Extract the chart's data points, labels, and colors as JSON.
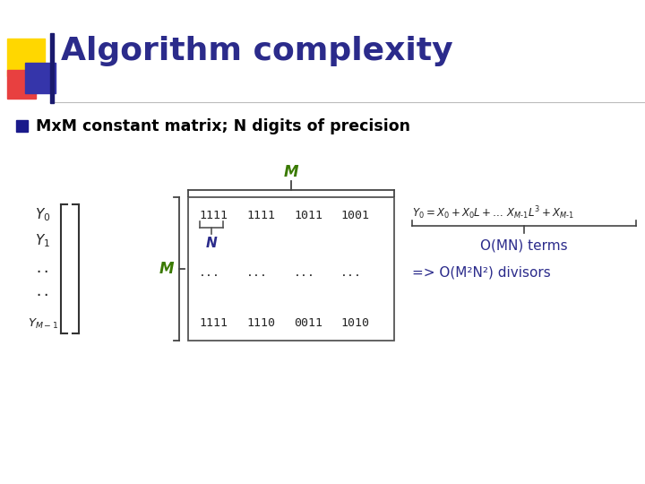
{
  "title": "Algorithm complexity",
  "title_color": "#2B2B8B",
  "bg_color": "#FFFFFF",
  "green_color": "#3A7A00",
  "dark_blue": "#2B2B8B",
  "navy": "#1A1A6E",
  "bullet_text": "MxM constant matrix; N digits of precision",
  "top_brace_label": "M",
  "left_brace_label": "M",
  "N_label": "N",
  "terms_text": "O(MN) terms",
  "divisors_text": "=> O(M²N²) divisors",
  "row0": [
    "1111",
    "1111",
    "1011",
    "1001"
  ],
  "row_mid": [
    "...",
    "...",
    "...",
    "..."
  ],
  "row_last": [
    "1111",
    "1110",
    "0011",
    "1010"
  ]
}
